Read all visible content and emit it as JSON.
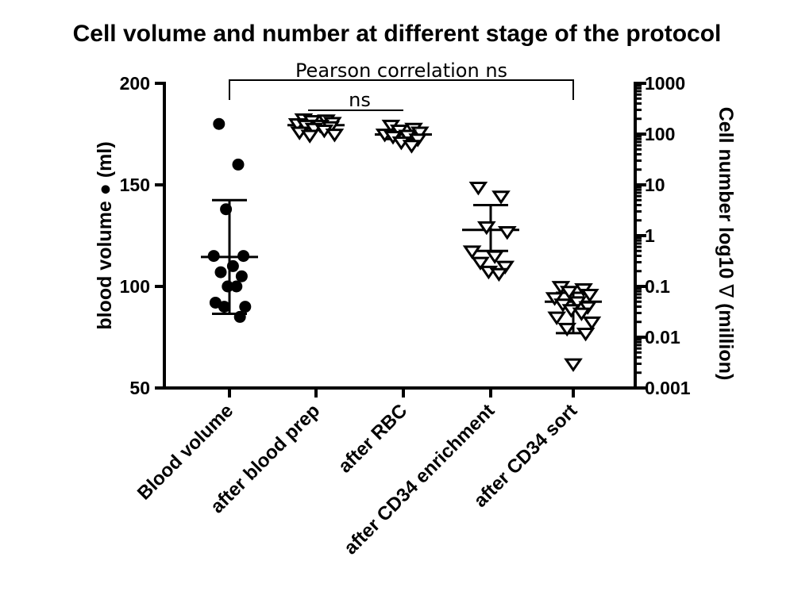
{
  "chart_data": {
    "type": "scatter",
    "title": "Cell volume and number at different stage of the protocol",
    "ylabel_left": "blood volume",
    "ylabel_left_marker": "●",
    "ylabel_left_unit": "(ml)",
    "ylabel_right": "Cell number log10",
    "ylabel_right_marker": "∇",
    "ylabel_right_unit": "(million)",
    "left_axis": {
      "scale": "linear",
      "range": [
        50,
        200
      ],
      "ticks": [
        "50",
        "100",
        "150",
        "200"
      ]
    },
    "right_axis": {
      "scale": "log10",
      "range": [
        0.001,
        1000
      ],
      "ticks": [
        "0.001",
        "0.01",
        "0.1",
        "1",
        "10",
        "100",
        "1000"
      ]
    },
    "categories": [
      "Blood volume",
      "after blood prep",
      "after RBC",
      "after CD34 enrichment",
      "after CD34 sort"
    ],
    "grid": false,
    "legend": "none",
    "series": [
      {
        "category": "Blood volume",
        "axis": "left",
        "marker": "filled-circle",
        "values": [
          180,
          160,
          138,
          115,
          115,
          110,
          107,
          105,
          100,
          100,
          92,
          90,
          90,
          85
        ],
        "mean": 114.5,
        "sd": 28
      },
      {
        "category": "after blood prep",
        "axis": "right",
        "marker": "open-triangle-down",
        "values": [
          200,
          190,
          185,
          170,
          160,
          150,
          150,
          140,
          130,
          120,
          110,
          100,
          95
        ],
        "mean": 150,
        "sd_range": [
          130,
          170
        ]
      },
      {
        "category": "after RBC",
        "axis": "right",
        "marker": "open-triangle-down",
        "values": [
          150,
          130,
          120,
          110,
          100,
          95,
          90,
          80,
          70,
          60
        ],
        "mean": 98,
        "sd_range": [
          80,
          115
        ]
      },
      {
        "category": "after CD34 enrichment",
        "axis": "right",
        "marker": "open-triangle-down",
        "values": [
          9,
          6,
          1.5,
          1.2,
          0.5,
          0.4,
          0.3,
          0.25,
          0.2,
          0.18
        ],
        "mean": 1.3,
        "sd_range": [
          0.5,
          4
        ]
      },
      {
        "category": "after CD34 sort",
        "axis": "right",
        "marker": "open-triangle-down",
        "values": [
          0.1,
          0.09,
          0.08,
          0.07,
          0.06,
          0.05,
          0.045,
          0.04,
          0.035,
          0.03,
          0.025,
          0.02,
          0.015,
          0.012,
          0.003
        ],
        "mean": 0.05,
        "sd_range": [
          0.012,
          0.075
        ]
      }
    ],
    "annotations": [
      {
        "label": "Pearson correlation ns",
        "from_category": "Blood volume",
        "to_category": "after CD34 sort"
      },
      {
        "label": "ns",
        "from_category": "after blood prep",
        "to_category": "after RBC"
      }
    ]
  }
}
